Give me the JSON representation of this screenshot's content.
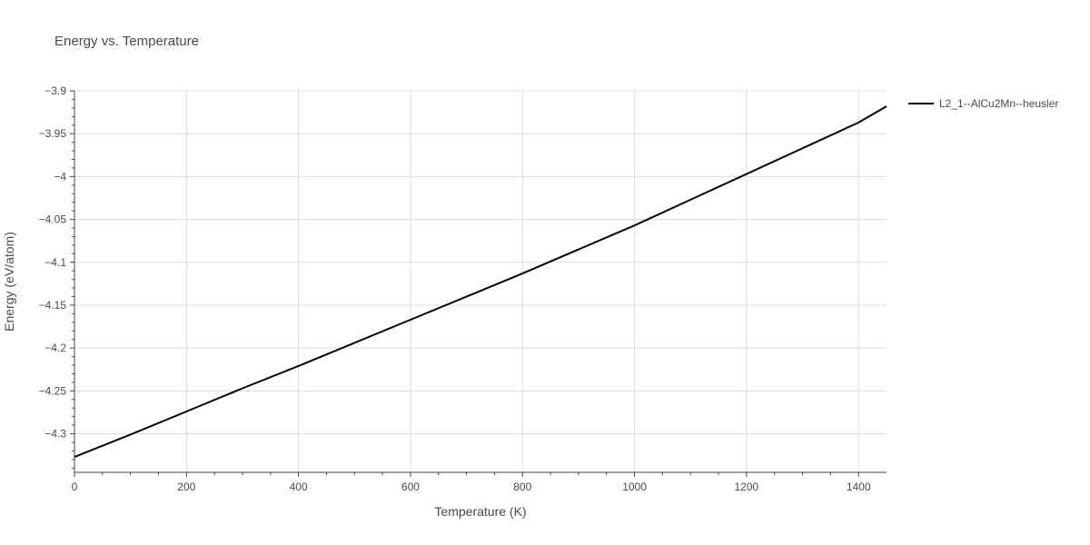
{
  "chart_data": {
    "type": "line",
    "title": "Energy vs. Temperature",
    "xlabel": "Temperature (K)",
    "ylabel": "Energy (eV/atom)",
    "xlim": [
      0,
      1450
    ],
    "ylim": [
      -4.345,
      -3.9
    ],
    "x_ticks": [
      0,
      200,
      400,
      600,
      800,
      1000,
      1200,
      1400
    ],
    "x_tick_labels": [
      "0",
      "200",
      "400",
      "600",
      "800",
      "1000",
      "1200",
      "1400"
    ],
    "y_ticks": [
      -3.9,
      -3.95,
      -4,
      -4.05,
      -4.1,
      -4.15,
      -4.2,
      -4.25,
      -4.3
    ],
    "y_tick_labels": [
      "−3.9",
      "−3.95",
      "−4",
      "−4.05",
      "−4.1",
      "−4.15",
      "−4.2",
      "−4.25",
      "−4.3"
    ],
    "grid": true,
    "legend_position": "top-right, outside plot",
    "series": [
      {
        "name": "L2_1--AlCu2Mn--heusler",
        "color": "#000000",
        "x": [
          0,
          100,
          200,
          300,
          400,
          500,
          600,
          700,
          800,
          900,
          1000,
          1100,
          1200,
          1300,
          1400,
          1450
        ],
        "y": [
          -4.327,
          -4.301,
          -4.274,
          -4.247,
          -4.221,
          -4.194,
          -4.167,
          -4.14,
          -4.113,
          -4.085,
          -4.057,
          -4.027,
          -3.997,
          -3.967,
          -3.937,
          -3.918
        ]
      }
    ]
  }
}
